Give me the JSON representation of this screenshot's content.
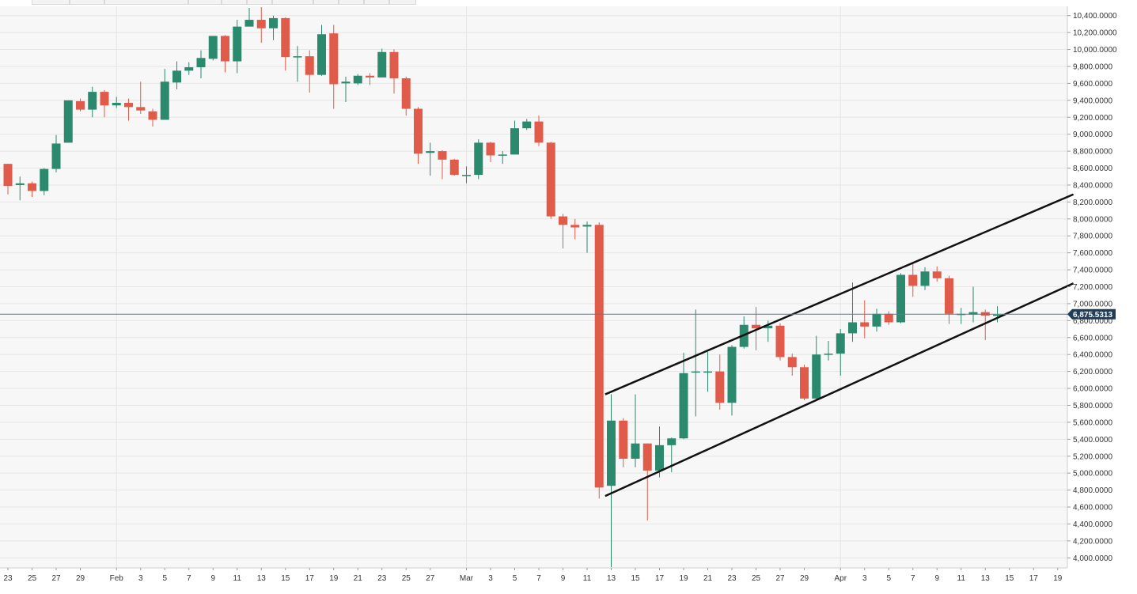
{
  "chart_data": {
    "type": "candlestick",
    "title": "",
    "xlabel": "",
    "ylabel": "",
    "ylim": [
      3900,
      10500
    ],
    "y_ticks": [
      4000,
      4200,
      4400,
      4600,
      4800,
      5000,
      5200,
      5400,
      5600,
      5800,
      6000,
      6200,
      6400,
      6600,
      6800,
      7000,
      7200,
      7400,
      7600,
      7800,
      8000,
      8200,
      8400,
      8600,
      8800,
      9000,
      9200,
      9400,
      9600,
      9800,
      10000,
      10200,
      10400
    ],
    "y_tick_labels": [
      "4,000.0000",
      "4,200.0000",
      "4,400.0000",
      "4,600.0000",
      "4,800.0000",
      "5,000.0000",
      "5,200.0000",
      "5,400.0000",
      "5,600.0000",
      "5,800.0000",
      "6,000.0000",
      "6,200.0000",
      "6,400.0000",
      "6,600.0000",
      "6,800.0000",
      "7,000.0000",
      "7,200.0000",
      "7,400.0000",
      "7,600.0000",
      "7,800.0000",
      "8,000.0000",
      "8,200.0000",
      "8,400.0000",
      "8,600.0000",
      "8,800.0000",
      "9,000.0000",
      "9,200.0000",
      "9,400.0000",
      "9,600.0000",
      "9,800.0000",
      "10,000.0000",
      "10,200.0000",
      "10,400.0000"
    ],
    "x_ticks": [
      {
        "label": "23",
        "day": 0
      },
      {
        "label": "25",
        "day": 2
      },
      {
        "label": "27",
        "day": 4
      },
      {
        "label": "29",
        "day": 6
      },
      {
        "label": "Feb",
        "day": 9
      },
      {
        "label": "3",
        "day": 11
      },
      {
        "label": "5",
        "day": 13
      },
      {
        "label": "7",
        "day": 15
      },
      {
        "label": "9",
        "day": 17
      },
      {
        "label": "11",
        "day": 19
      },
      {
        "label": "13",
        "day": 21
      },
      {
        "label": "15",
        "day": 23
      },
      {
        "label": "17",
        "day": 25
      },
      {
        "label": "19",
        "day": 27
      },
      {
        "label": "21",
        "day": 29
      },
      {
        "label": "23",
        "day": 31
      },
      {
        "label": "25",
        "day": 33
      },
      {
        "label": "27",
        "day": 35
      },
      {
        "label": "Mar",
        "day": 38
      },
      {
        "label": "3",
        "day": 40
      },
      {
        "label": "5",
        "day": 42
      },
      {
        "label": "7",
        "day": 44
      },
      {
        "label": "9",
        "day": 46
      },
      {
        "label": "11",
        "day": 48
      },
      {
        "label": "13",
        "day": 50
      },
      {
        "label": "15",
        "day": 52
      },
      {
        "label": "17",
        "day": 54
      },
      {
        "label": "19",
        "day": 56
      },
      {
        "label": "21",
        "day": 58
      },
      {
        "label": "23",
        "day": 60
      },
      {
        "label": "25",
        "day": 62
      },
      {
        "label": "27",
        "day": 64
      },
      {
        "label": "29",
        "day": 66
      },
      {
        "label": "Apr",
        "day": 69
      },
      {
        "label": "3",
        "day": 71
      },
      {
        "label": "5",
        "day": 73
      },
      {
        "label": "7",
        "day": 75
      },
      {
        "label": "9",
        "day": 77
      },
      {
        "label": "11",
        "day": 79
      },
      {
        "label": "13",
        "day": 81
      },
      {
        "label": "15",
        "day": 83
      },
      {
        "label": "17",
        "day": 85
      },
      {
        "label": "19",
        "day": 87
      }
    ],
    "vertical_grid_days": [
      9,
      38,
      69
    ],
    "candles": [
      {
        "o": 8650,
        "h": 8650,
        "l": 8290,
        "c": 8390
      },
      {
        "o": 8400,
        "h": 8500,
        "l": 8220,
        "c": 8420
      },
      {
        "o": 8420,
        "h": 8440,
        "l": 8260,
        "c": 8330
      },
      {
        "o": 8330,
        "h": 8600,
        "l": 8280,
        "c": 8590
      },
      {
        "o": 8590,
        "h": 8990,
        "l": 8550,
        "c": 8890
      },
      {
        "o": 8900,
        "h": 9400,
        "l": 8900,
        "c": 9400
      },
      {
        "o": 9390,
        "h": 9420,
        "l": 9270,
        "c": 9290
      },
      {
        "o": 9290,
        "h": 9560,
        "l": 9200,
        "c": 9500
      },
      {
        "o": 9500,
        "h": 9520,
        "l": 9200,
        "c": 9340
      },
      {
        "o": 9340,
        "h": 9440,
        "l": 9310,
        "c": 9370
      },
      {
        "o": 9370,
        "h": 9420,
        "l": 9160,
        "c": 9320
      },
      {
        "o": 9320,
        "h": 9620,
        "l": 9240,
        "c": 9280
      },
      {
        "o": 9270,
        "h": 9300,
        "l": 9090,
        "c": 9170
      },
      {
        "o": 9170,
        "h": 9770,
        "l": 9170,
        "c": 9620
      },
      {
        "o": 9610,
        "h": 9860,
        "l": 9530,
        "c": 9750
      },
      {
        "o": 9750,
        "h": 9850,
        "l": 9700,
        "c": 9790
      },
      {
        "o": 9790,
        "h": 9990,
        "l": 9660,
        "c": 9900
      },
      {
        "o": 9890,
        "h": 10160,
        "l": 9870,
        "c": 10160
      },
      {
        "o": 10160,
        "h": 10170,
        "l": 9730,
        "c": 9860
      },
      {
        "o": 9860,
        "h": 10350,
        "l": 9720,
        "c": 10270
      },
      {
        "o": 10270,
        "h": 10490,
        "l": 10270,
        "c": 10350
      },
      {
        "o": 10350,
        "h": 10500,
        "l": 10080,
        "c": 10250
      },
      {
        "o": 10250,
        "h": 10400,
        "l": 10110,
        "c": 10370
      },
      {
        "o": 10370,
        "h": 10380,
        "l": 9750,
        "c": 9910
      },
      {
        "o": 9910,
        "h": 10040,
        "l": 9620,
        "c": 9920
      },
      {
        "o": 9920,
        "h": 9990,
        "l": 9490,
        "c": 9700
      },
      {
        "o": 9700,
        "h": 10290,
        "l": 9690,
        "c": 10180
      },
      {
        "o": 10190,
        "h": 10290,
        "l": 9300,
        "c": 9590
      },
      {
        "o": 9600,
        "h": 9680,
        "l": 9380,
        "c": 9620
      },
      {
        "o": 9600,
        "h": 9710,
        "l": 9580,
        "c": 9690
      },
      {
        "o": 9690,
        "h": 9720,
        "l": 9580,
        "c": 9670
      },
      {
        "o": 9670,
        "h": 10010,
        "l": 9670,
        "c": 9970
      },
      {
        "o": 9970,
        "h": 10000,
        "l": 9480,
        "c": 9660
      },
      {
        "o": 9660,
        "h": 9680,
        "l": 9220,
        "c": 9300
      },
      {
        "o": 9300,
        "h": 9320,
        "l": 8650,
        "c": 8770
      },
      {
        "o": 8780,
        "h": 8900,
        "l": 8510,
        "c": 8800
      },
      {
        "o": 8800,
        "h": 8810,
        "l": 8470,
        "c": 8700
      },
      {
        "o": 8700,
        "h": 8710,
        "l": 8510,
        "c": 8520
      },
      {
        "o": 8520,
        "h": 8620,
        "l": 8420,
        "c": 8520
      },
      {
        "o": 8520,
        "h": 8940,
        "l": 8470,
        "c": 8900
      },
      {
        "o": 8900,
        "h": 8910,
        "l": 8670,
        "c": 8750
      },
      {
        "o": 8750,
        "h": 8800,
        "l": 8650,
        "c": 8760
      },
      {
        "o": 8760,
        "h": 9160,
        "l": 8760,
        "c": 9070
      },
      {
        "o": 9070,
        "h": 9180,
        "l": 9050,
        "c": 9150
      },
      {
        "o": 9150,
        "h": 9220,
        "l": 8860,
        "c": 8900
      },
      {
        "o": 8900,
        "h": 8910,
        "l": 8000,
        "c": 8030
      },
      {
        "o": 8030,
        "h": 8060,
        "l": 7650,
        "c": 7930
      },
      {
        "o": 7930,
        "h": 8000,
        "l": 7760,
        "c": 7900
      },
      {
        "o": 7910,
        "h": 7970,
        "l": 7600,
        "c": 7930
      },
      {
        "o": 7930,
        "h": 7960,
        "l": 4700,
        "c": 4830
      },
      {
        "o": 4850,
        "h": 5930,
        "l": 3890,
        "c": 5620
      },
      {
        "o": 5620,
        "h": 5650,
        "l": 5070,
        "c": 5170
      },
      {
        "o": 5170,
        "h": 5930,
        "l": 5070,
        "c": 5350
      },
      {
        "o": 5350,
        "h": 5350,
        "l": 4440,
        "c": 5030
      },
      {
        "o": 5030,
        "h": 5550,
        "l": 4950,
        "c": 5330
      },
      {
        "o": 5330,
        "h": 5420,
        "l": 5010,
        "c": 5410
      },
      {
        "o": 5410,
        "h": 6420,
        "l": 5400,
        "c": 6180
      },
      {
        "o": 6190,
        "h": 6930,
        "l": 5670,
        "c": 6200
      },
      {
        "o": 6200,
        "h": 6430,
        "l": 5960,
        "c": 6200
      },
      {
        "o": 6200,
        "h": 6400,
        "l": 5750,
        "c": 5830
      },
      {
        "o": 5830,
        "h": 6510,
        "l": 5680,
        "c": 6490
      },
      {
        "o": 6490,
        "h": 6850,
        "l": 6470,
        "c": 6750
      },
      {
        "o": 6750,
        "h": 6960,
        "l": 6450,
        "c": 6710
      },
      {
        "o": 6710,
        "h": 6800,
        "l": 6550,
        "c": 6740
      },
      {
        "o": 6740,
        "h": 6770,
        "l": 6330,
        "c": 6370
      },
      {
        "o": 6370,
        "h": 6410,
        "l": 6150,
        "c": 6250
      },
      {
        "o": 6250,
        "h": 6280,
        "l": 5860,
        "c": 5880
      },
      {
        "o": 5880,
        "h": 6620,
        "l": 5850,
        "c": 6400
      },
      {
        "o": 6400,
        "h": 6560,
        "l": 6330,
        "c": 6410
      },
      {
        "o": 6410,
        "h": 6700,
        "l": 6150,
        "c": 6650
      },
      {
        "o": 6650,
        "h": 7250,
        "l": 6550,
        "c": 6780
      },
      {
        "o": 6780,
        "h": 7040,
        "l": 6590,
        "c": 6730
      },
      {
        "o": 6730,
        "h": 6940,
        "l": 6670,
        "c": 6880
      },
      {
        "o": 6880,
        "h": 6910,
        "l": 6750,
        "c": 6780
      },
      {
        "o": 6780,
        "h": 7360,
        "l": 6770,
        "c": 7340
      },
      {
        "o": 7340,
        "h": 7490,
        "l": 7080,
        "c": 7210
      },
      {
        "o": 7210,
        "h": 7430,
        "l": 7160,
        "c": 7380
      },
      {
        "o": 7380,
        "h": 7440,
        "l": 7260,
        "c": 7300
      },
      {
        "o": 7300,
        "h": 7330,
        "l": 6760,
        "c": 6880
      },
      {
        "o": 6880,
        "h": 6950,
        "l": 6760,
        "c": 6880
      },
      {
        "o": 6870,
        "h": 7200,
        "l": 6780,
        "c": 6900
      },
      {
        "o": 6900,
        "h": 6930,
        "l": 6570,
        "c": 6860
      },
      {
        "o": 6860,
        "h": 6970,
        "l": 6780,
        "c": 6870
      }
    ],
    "current_price": 6875.5313,
    "current_price_label": "6,875.5313",
    "channel_upper": {
      "d1": 49.5,
      "v1": 5930,
      "d2": 88.3,
      "v2": 8290
    },
    "channel_lower": {
      "d1": 49.5,
      "v1": 4730,
      "d2": 88.3,
      "v2": 7240
    },
    "colors": {
      "up": "#2b8a6e",
      "down": "#e05b4a",
      "grid": "#e6e6e6",
      "panel": "#f7f7f7",
      "price_line": "#5a7b8f",
      "price_tag": "#1f3d5a",
      "channel": "#111111"
    },
    "grid": true
  }
}
